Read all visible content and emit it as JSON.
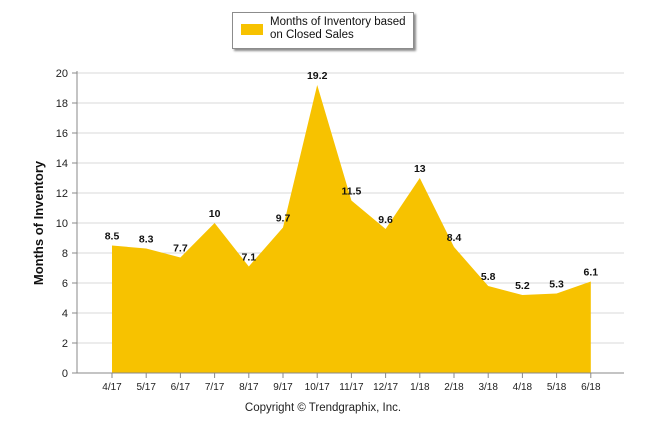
{
  "chart_data": {
    "type": "area",
    "categories": [
      "4/17",
      "5/17",
      "6/17",
      "7/17",
      "8/17",
      "9/17",
      "10/17",
      "11/17",
      "12/17",
      "1/18",
      "2/18",
      "3/18",
      "4/18",
      "5/18",
      "6/18"
    ],
    "series": [
      {
        "name": "Months of Inventory based on Closed Sales",
        "values": [
          8.5,
          8.3,
          7.7,
          10,
          7.1,
          9.7,
          19.2,
          11.5,
          9.6,
          13,
          8.4,
          5.8,
          5.2,
          5.3,
          6.1
        ],
        "color": "#f7c200"
      }
    ],
    "data_labels": [
      "8.5",
      "8.3",
      "7.7",
      "10",
      "7.1",
      "9.7",
      "19.2",
      "11.5",
      "9.6",
      "13",
      "8.4",
      "5.8",
      "5.2",
      "5.3",
      "6.1"
    ],
    "ylabel": "Months of Inventory",
    "xlabel": "",
    "ylim": [
      0,
      20
    ],
    "yticks": [
      "0",
      "2",
      "4",
      "6",
      "8",
      "10",
      "12",
      "14",
      "16",
      "18",
      "20"
    ],
    "grid": true,
    "legend_position": "top-center"
  },
  "legend": {
    "label": "Months of Inventory based on Closed Sales"
  },
  "footer": {
    "copyright": "Copyright © Trendgraphix, Inc."
  },
  "colors": {
    "fill": "#f7c200",
    "grid": "#d9d9d9",
    "axis": "#888888"
  }
}
